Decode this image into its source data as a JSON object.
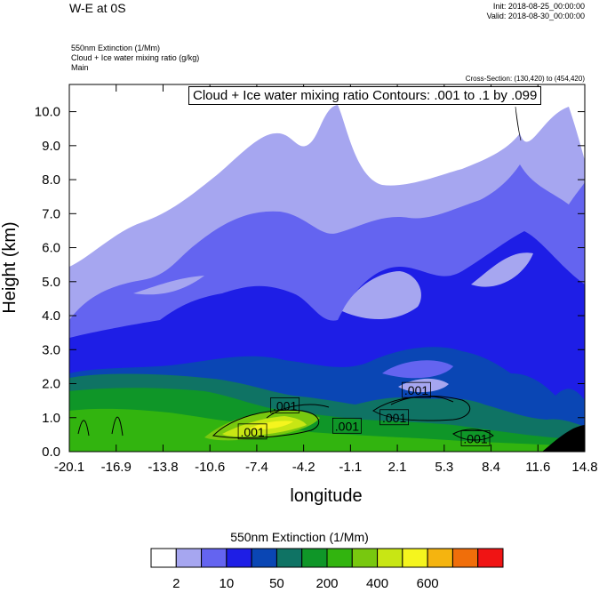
{
  "header": {
    "title": "W-E at 0S",
    "init": "Init: 2018-08-25_00:00:00",
    "valid": "Valid: 2018-08-30_00:00:00",
    "sub_lines": [
      "550nm Extinction   (1/Mm)",
      "Cloud + Ice water mixing ratio   (g/kg)",
      "Main"
    ],
    "cross_section": "Cross-Section: (130,420) to (454,420)"
  },
  "contour_label": "Cloud + Ice water mixing ratio Contours: .001 to .1 by .099",
  "colorbar": {
    "title": "550nm Extinction  (1/Mm)",
    "colors": [
      "#ffffff",
      "#a6a6f0",
      "#6464f0",
      "#1e1ee6",
      "#0a46b4",
      "#0f7364",
      "#0f9628",
      "#32b40f",
      "#78c80f",
      "#c8e614",
      "#f5f51e",
      "#f5b40f",
      "#f06e0a",
      "#f01414"
    ],
    "labels": [
      {
        "text": "2",
        "boundary": 1
      },
      {
        "text": "10",
        "boundary": 3
      },
      {
        "text": "50",
        "boundary": 5
      },
      {
        "text": "200",
        "boundary": 7
      },
      {
        "text": "400",
        "boundary": 9
      },
      {
        "text": "600",
        "boundary": 11
      }
    ]
  },
  "chart_data": {
    "type": "heatmap",
    "title": "W-E at 0S",
    "xlabel": "longitude",
    "ylabel": "Height (km)",
    "xlim": [
      -20.1,
      14.8
    ],
    "ylim": [
      0,
      10.8
    ],
    "x_ticks": [
      "-20.1",
      "-16.9",
      "-13.8",
      "-10.6",
      "-7.4",
      "-4.2",
      "-1.1",
      "2.1",
      "5.3",
      "8.4",
      "11.6",
      "14.8"
    ],
    "y_ticks": [
      "0.0",
      "1.0",
      "2.0",
      "3.0",
      "4.0",
      "5.0",
      "6.0",
      "7.0",
      "8.0",
      "9.0",
      "10.0"
    ],
    "contour_levels": [
      ".001"
    ],
    "contour_labels": [
      {
        "text": ".001",
        "x": -5.5,
        "y": 1.35
      },
      {
        "text": ".001",
        "x": -7.7,
        "y": 0.58
      },
      {
        "text": ".001",
        "x": -1.3,
        "y": 0.75
      },
      {
        "text": ".001",
        "x": 1.9,
        "y": 1.0
      },
      {
        "text": ".001",
        "x": 3.4,
        "y": 1.8
      },
      {
        "text": ".001",
        "x": 7.4,
        "y": 0.38
      }
    ]
  }
}
